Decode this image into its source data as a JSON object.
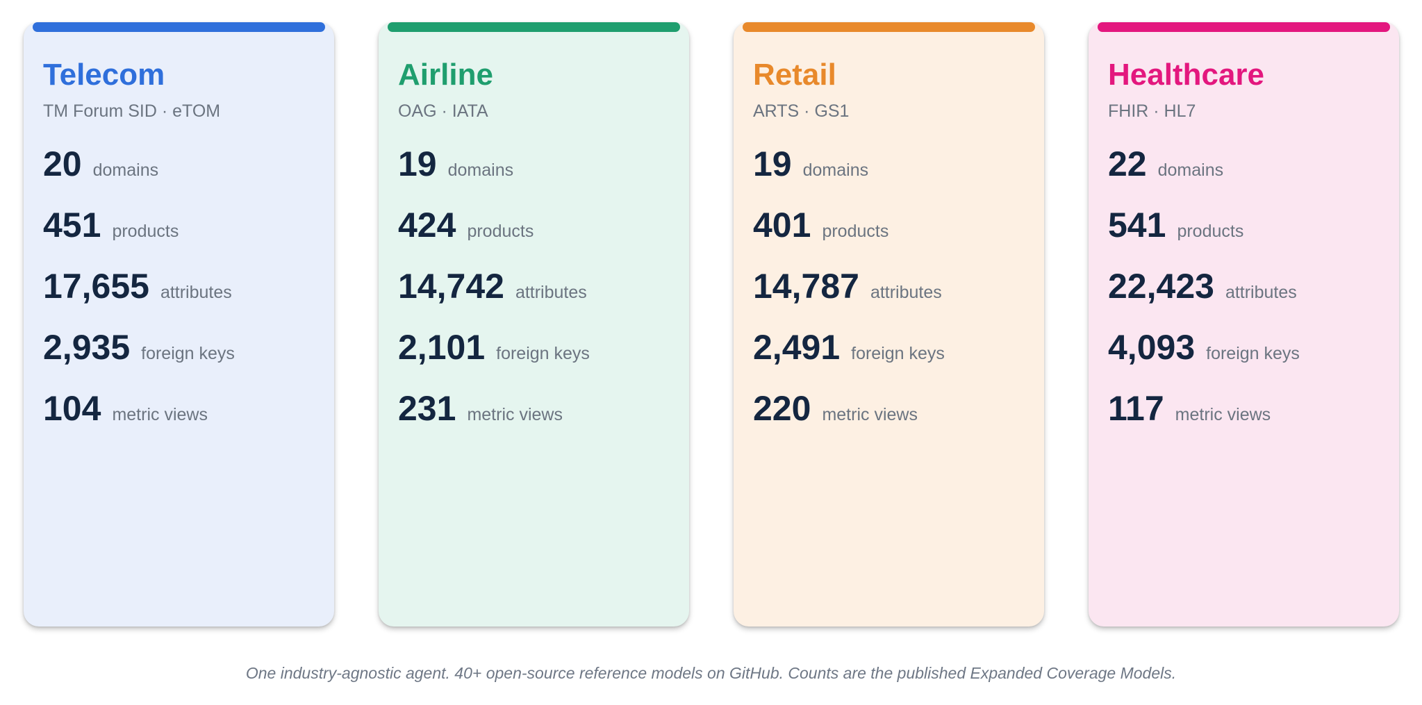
{
  "cards": [
    {
      "title": "Telecom",
      "subtitle": "TM Forum SID · eTOM",
      "accent": "#2f6fdb",
      "background": "#e9effb",
      "metrics": [
        {
          "value": "20",
          "label": "domains"
        },
        {
          "value": "451",
          "label": "products"
        },
        {
          "value": "17,655",
          "label": "attributes"
        },
        {
          "value": "2,935",
          "label": "foreign keys"
        },
        {
          "value": "104",
          "label": "metric views"
        }
      ]
    },
    {
      "title": "Airline",
      "subtitle": "OAG · IATA",
      "accent": "#1f9e6e",
      "background": "#e5f5ef",
      "metrics": [
        {
          "value": "19",
          "label": "domains"
        },
        {
          "value": "424",
          "label": "products"
        },
        {
          "value": "14,742",
          "label": "attributes"
        },
        {
          "value": "2,101",
          "label": "foreign keys"
        },
        {
          "value": "231",
          "label": "metric views"
        }
      ]
    },
    {
      "title": "Retail",
      "subtitle": "ARTS · GS1",
      "accent": "#e8892b",
      "background": "#fdf0e3",
      "metrics": [
        {
          "value": "19",
          "label": "domains"
        },
        {
          "value": "401",
          "label": "products"
        },
        {
          "value": "14,787",
          "label": "attributes"
        },
        {
          "value": "2,491",
          "label": "foreign keys"
        },
        {
          "value": "220",
          "label": "metric views"
        }
      ]
    },
    {
      "title": "Healthcare",
      "subtitle": "FHIR · HL7",
      "accent": "#e3177e",
      "background": "#fbe6f1",
      "metrics": [
        {
          "value": "22",
          "label": "domains"
        },
        {
          "value": "541",
          "label": "products"
        },
        {
          "value": "22,423",
          "label": "attributes"
        },
        {
          "value": "4,093",
          "label": "foreign keys"
        },
        {
          "value": "117",
          "label": "metric views"
        }
      ]
    }
  ],
  "footer": "One industry-agnostic agent. 40+ open-source reference models on GitHub. Counts are the published Expanded Coverage Models."
}
